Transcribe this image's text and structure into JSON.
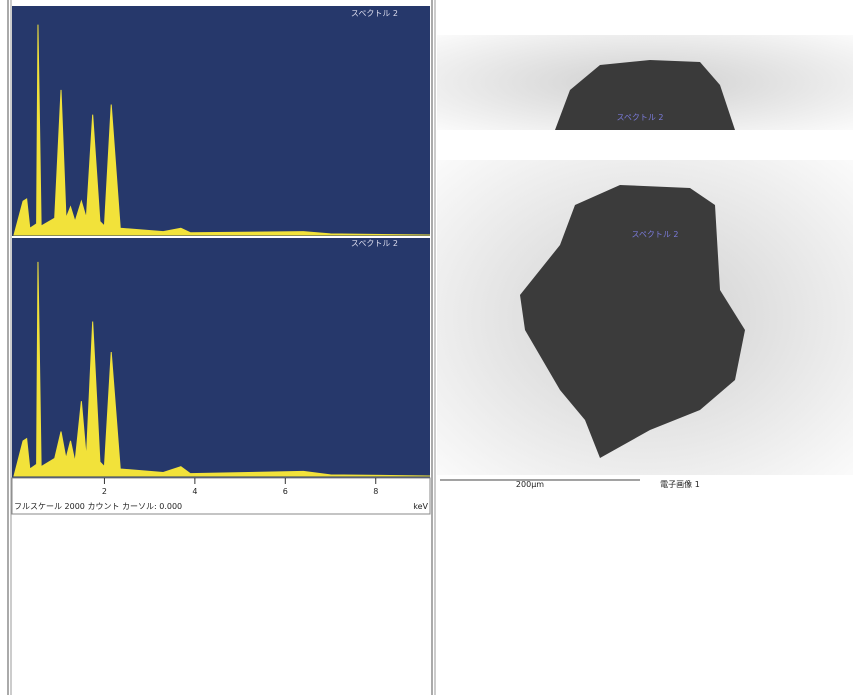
{
  "chart_data": [
    {
      "type": "area",
      "label": "スペクトル 2",
      "color": "#f2e23a",
      "x": [
        0,
        0.2,
        0.28,
        0.35,
        0.5,
        0.53,
        0.6,
        0.9,
        1.04,
        1.15,
        1.25,
        1.35,
        1.49,
        1.6,
        1.74,
        1.9,
        2.0,
        2.15,
        2.35,
        3.3,
        3.69,
        3.9,
        6.4,
        7.0,
        9.2
      ],
      "values": [
        0,
        300,
        320,
        60,
        100,
        1870,
        80,
        150,
        1290,
        150,
        250,
        120,
        300,
        150,
        1070,
        120,
        80,
        1160,
        60,
        30,
        60,
        20,
        30,
        10,
        0
      ],
      "xlim": [
        0,
        9.2
      ],
      "ylim": [
        0,
        2000
      ]
    },
    {
      "type": "area",
      "label": "スペクトル 2",
      "color": "#f2e23a",
      "x": [
        0,
        0.2,
        0.28,
        0.35,
        0.5,
        0.53,
        0.6,
        0.9,
        1.04,
        1.15,
        1.25,
        1.35,
        1.49,
        1.6,
        1.74,
        1.9,
        2.0,
        2.15,
        2.35,
        3.3,
        3.69,
        3.9,
        6.4,
        7.0,
        9.2
      ],
      "values": [
        0,
        300,
        320,
        60,
        100,
        1830,
        80,
        150,
        380,
        150,
        300,
        120,
        640,
        150,
        1320,
        120,
        80,
        1060,
        60,
        30,
        80,
        20,
        40,
        10,
        0
      ],
      "xlim": [
        0,
        9.2
      ],
      "ylim": [
        0,
        2000
      ],
      "xticks": [
        2,
        4,
        6,
        8
      ],
      "x_unit": "keV",
      "footer": "フルスケール 2000 カウント カーソル: 0.000"
    }
  ],
  "images": {
    "top_label": "スペクトル 2",
    "main_label": "スペクトル 2",
    "scale": "200µm",
    "caption": "電子画像 1"
  }
}
